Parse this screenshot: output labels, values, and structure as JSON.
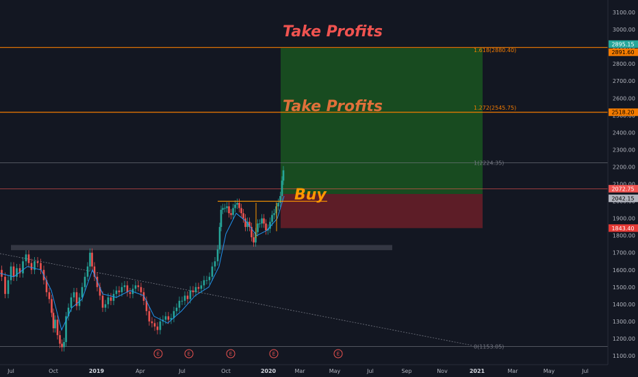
{
  "chart_data": {
    "type": "candlestick",
    "y_axis": {
      "ticks": [
        "1100.00",
        "1200.00",
        "1300.00",
        "1400.00",
        "1500.00",
        "1600.00",
        "1700.00",
        "1800.00",
        "1900.00",
        "2000.00",
        "2100.00",
        "2200.00",
        "2300.00",
        "2400.00",
        "2500.00",
        "2600.00",
        "2700.00",
        "2800.00",
        "2900.00",
        "3000.00",
        "3100.00"
      ],
      "range": [
        1075,
        3170
      ]
    },
    "x_axis": {
      "ticks": [
        {
          "label": "Jul",
          "bold": false
        },
        {
          "label": "Oct",
          "bold": false
        },
        {
          "label": "2019",
          "bold": true
        },
        {
          "label": "Apr",
          "bold": false
        },
        {
          "label": "Jul",
          "bold": false
        },
        {
          "label": "Oct",
          "bold": false
        },
        {
          "label": "2020",
          "bold": true
        },
        {
          "label": "Mar",
          "bold": false
        },
        {
          "label": "May",
          "bold": false
        },
        {
          "label": "Jul",
          "bold": false
        },
        {
          "label": "Sep",
          "bold": false
        },
        {
          "label": "Nov",
          "bold": false
        },
        {
          "label": "2021",
          "bold": true
        },
        {
          "label": "Mar",
          "bold": false
        },
        {
          "label": "May",
          "bold": false
        },
        {
          "label": "Jul",
          "bold": false
        }
      ]
    },
    "price_series": [
      [
        0,
        1600
      ],
      [
        5,
        1560
      ],
      [
        10,
        1460
      ],
      [
        14,
        1540
      ],
      [
        18,
        1620
      ],
      [
        22,
        1560
      ],
      [
        27,
        1610
      ],
      [
        31,
        1580
      ],
      [
        36,
        1650
      ],
      [
        40,
        1690
      ],
      [
        44,
        1640
      ],
      [
        48,
        1600
      ],
      [
        53,
        1650
      ],
      [
        57,
        1640
      ],
      [
        62,
        1600
      ],
      [
        66,
        1540
      ],
      [
        70,
        1470
      ],
      [
        74,
        1430
      ],
      [
        77,
        1350
      ],
      [
        79,
        1260
      ],
      [
        82,
        1310
      ],
      [
        86,
        1220
      ],
      [
        89,
        1170
      ],
      [
        92,
        1150
      ],
      [
        95,
        1180
      ],
      [
        98,
        1330
      ],
      [
        102,
        1380
      ],
      [
        106,
        1440
      ],
      [
        110,
        1470
      ],
      [
        114,
        1390
      ],
      [
        118,
        1440
      ],
      [
        122,
        1500
      ],
      [
        126,
        1560
      ],
      [
        130,
        1620
      ],
      [
        133,
        1700
      ],
      [
        136,
        1620
      ],
      [
        140,
        1560
      ],
      [
        144,
        1500
      ],
      [
        148,
        1450
      ],
      [
        152,
        1380
      ],
      [
        156,
        1400
      ],
      [
        160,
        1440
      ],
      [
        164,
        1420
      ],
      [
        168,
        1460
      ],
      [
        172,
        1480
      ],
      [
        176,
        1470
      ],
      [
        180,
        1500
      ],
      [
        184,
        1510
      ],
      [
        188,
        1470
      ],
      [
        192,
        1460
      ],
      [
        196,
        1490
      ],
      [
        200,
        1510
      ],
      [
        204,
        1500
      ],
      [
        208,
        1470
      ],
      [
        212,
        1420
      ],
      [
        216,
        1360
      ],
      [
        220,
        1300
      ],
      [
        224,
        1290
      ],
      [
        228,
        1270
      ],
      [
        232,
        1250
      ],
      [
        236,
        1300
      ],
      [
        240,
        1310
      ],
      [
        244,
        1330
      ],
      [
        248,
        1310
      ],
      [
        252,
        1320
      ],
      [
        256,
        1360
      ],
      [
        260,
        1380
      ],
      [
        264,
        1420
      ],
      [
        268,
        1420
      ],
      [
        272,
        1450
      ],
      [
        276,
        1430
      ],
      [
        280,
        1480
      ],
      [
        284,
        1470
      ],
      [
        288,
        1500
      ],
      [
        292,
        1490
      ],
      [
        296,
        1510
      ],
      [
        300,
        1540
      ],
      [
        304,
        1540
      ],
      [
        308,
        1560
      ],
      [
        312,
        1620
      ],
      [
        316,
        1650
      ],
      [
        320,
        1720
      ],
      [
        322,
        1850
      ],
      [
        324,
        1950
      ],
      [
        327,
        1960
      ],
      [
        330,
        1960
      ],
      [
        333,
        1970
      ],
      [
        336,
        1930
      ],
      [
        339,
        1920
      ],
      [
        342,
        1960
      ],
      [
        345,
        1980
      ],
      [
        348,
        1990
      ],
      [
        351,
        1960
      ],
      [
        354,
        1930
      ],
      [
        357,
        1900
      ],
      [
        360,
        1850
      ],
      [
        363,
        1880
      ],
      [
        366,
        1850
      ],
      [
        369,
        1790
      ],
      [
        372,
        1760
      ],
      [
        375,
        1820
      ],
      [
        378,
        1870
      ],
      [
        381,
        1870
      ],
      [
        384,
        1900
      ],
      [
        387,
        1870
      ],
      [
        390,
        1830
      ],
      [
        393,
        1840
      ],
      [
        396,
        1880
      ],
      [
        399,
        1920
      ],
      [
        402,
        1930
      ],
      [
        405,
        1970
      ],
      [
        408,
        1990
      ],
      [
        411,
        2030
      ],
      [
        413,
        2120
      ],
      [
        415,
        2180
      ]
    ],
    "ma_series": [
      [
        0,
        1580
      ],
      [
        20,
        1560
      ],
      [
        40,
        1620
      ],
      [
        60,
        1600
      ],
      [
        75,
        1480
      ],
      [
        90,
        1250
      ],
      [
        105,
        1380
      ],
      [
        120,
        1430
      ],
      [
        135,
        1600
      ],
      [
        150,
        1460
      ],
      [
        170,
        1440
      ],
      [
        190,
        1480
      ],
      [
        210,
        1450
      ],
      [
        225,
        1330
      ],
      [
        245,
        1290
      ],
      [
        265,
        1360
      ],
      [
        285,
        1450
      ],
      [
        305,
        1500
      ],
      [
        320,
        1620
      ],
      [
        330,
        1810
      ],
      [
        345,
        1930
      ],
      [
        360,
        1880
      ],
      [
        375,
        1800
      ],
      [
        390,
        1830
      ],
      [
        405,
        1900
      ],
      [
        415,
        2030
      ]
    ],
    "support_zone": {
      "x1": 16,
      "x2": 573,
      "y_low": 1715,
      "y_high": 1745
    },
    "trendline": {
      "x1": 0,
      "y1": 1695,
      "x2": 690,
      "y2": 1160
    },
    "neckline": {
      "x1": 318,
      "x2": 478,
      "y": 2000
    },
    "vertical_marks": [
      {
        "x": 374,
        "y_low": 1785,
        "y_high": 1990
      },
      {
        "x": 404,
        "y_low": 1825,
        "y_high": 1990
      }
    ],
    "fib_levels": [
      {
        "label": "1.618(2880.40)",
        "y": 2880.4,
        "color": "#f57c00"
      },
      {
        "label": "1.272(2545.75)",
        "y": 2545.75,
        "color": "#f57c00"
      },
      {
        "label": "1(2224.35)",
        "y": 2224.35,
        "color": "#787b86"
      },
      {
        "label": "0(1153.05)",
        "y": 1153.05,
        "color": "#787b86"
      }
    ],
    "position": {
      "x1": 410,
      "x2": 705,
      "entry": 2042.15,
      "target": 2891.6,
      "stop": 1843.4
    },
    "price_lines": [
      {
        "label": "2895.15",
        "y": 2895.15,
        "line_color": "#f57c00",
        "bg": "#26a69a",
        "fg": "#ffffff"
      },
      {
        "label": "2891.60",
        "y": 2891.6,
        "line_color": null,
        "bg": "#f57c00",
        "fg": "#000000"
      },
      {
        "label": "2518.20",
        "y": 2518.2,
        "line_color": "#f57c00",
        "bg": "#f57c00",
        "fg": "#000000"
      },
      {
        "label": "2072.75",
        "y": 2072.75,
        "line_color": "#ef5350",
        "bg": "#ef5350",
        "fg": "#ffffff"
      },
      {
        "label": "2042.15",
        "y": 2042.15,
        "line_color": null,
        "bg": "#b2b5be",
        "fg": "#000000"
      },
      {
        "label": "1843.40",
        "y": 1843.4,
        "line_color": null,
        "bg": "#e53935",
        "fg": "#ffffff"
      }
    ],
    "annotations": [
      {
        "text": "Take Profits",
        "color": "#ef5350",
        "x": 413,
        "y": 2960
      },
      {
        "text": "Take Profits",
        "color": "#e0703a",
        "x": 413,
        "y": 2525
      },
      {
        "text": "Buy",
        "color": "#ff9800",
        "x": 430,
        "y": 2010
      }
    ],
    "events": [
      {
        "label": "E",
        "x": 231
      },
      {
        "label": "E",
        "x": 276
      },
      {
        "label": "E",
        "x": 337
      },
      {
        "label": "E",
        "x": 400
      },
      {
        "label": "E",
        "x": 494
      }
    ],
    "colors": {
      "background": "#131722",
      "up": "#26a69a",
      "down": "#ef5350",
      "ma": "#2196f3",
      "target_zone": "#1b5e20",
      "stop_zone": "#6b1f28"
    }
  }
}
